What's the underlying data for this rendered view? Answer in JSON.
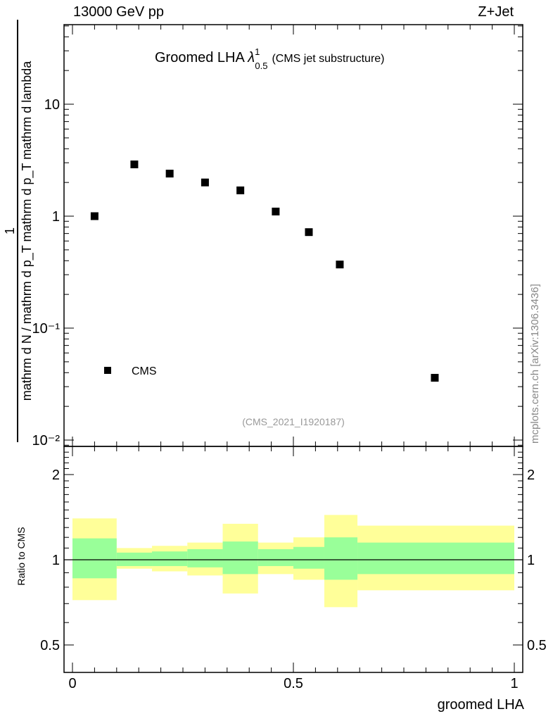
{
  "header": {
    "left": "13000 GeV pp",
    "right": "Z+Jet"
  },
  "watermark": "mcplots.cern.ch [arXiv:1306.3436]",
  "chart_data": [
    {
      "type": "scatter",
      "title_main": "Groomed LHA",
      "title_lambda_sup": "1",
      "title_lambda_sub": "0.5",
      "title_suffix": "(CMS jet substructure)",
      "analysis_tag": "(CMS_2021_I1920187)",
      "ylabel_numerator": "1",
      "ylabel_denominator": "mathrm d N / mathrm d p_T mathrm d p_T mathrm d lambda",
      "ylabel_n": "mathrm d N",
      "ylabel_d": "mathrm d p_T mathrm d p_T mathrm d lambda",
      "yscale": "log",
      "ylim": [
        0.009,
        60
      ],
      "xlim": [
        -0.02,
        1.02
      ],
      "ytick_labels": [
        "10",
        "1",
        "10⁻¹",
        "10⁻²"
      ],
      "legend": {
        "label": "CMS",
        "placement": "bottom-left"
      },
      "series": [
        {
          "name": "CMS",
          "x": [
            0.05,
            0.14,
            0.22,
            0.3,
            0.38,
            0.46,
            0.535,
            0.605,
            0.82
          ],
          "y": [
            1.0,
            2.9,
            2.4,
            2.0,
            1.7,
            1.1,
            0.72,
            0.37,
            0.036
          ]
        }
      ]
    },
    {
      "type": "area",
      "ylabel": "Ratio to CMS",
      "xlabel": "groomed LHA",
      "yscale": "log",
      "ylim": [
        0.4,
        2.4
      ],
      "xlim": [
        -0.02,
        1.02
      ],
      "yticks": [
        0.5,
        1,
        2
      ],
      "ytick_labels": [
        "0.5",
        "1",
        "2"
      ],
      "xticks": [
        0,
        0.5,
        1
      ],
      "xtick_labels": [
        "0",
        "0.5",
        "1"
      ],
      "reference_line": 1,
      "bins": [
        {
          "x0": 0.0,
          "x1": 0.1,
          "inner": [
            0.86,
            1.19
          ],
          "outer": [
            0.72,
            1.4
          ]
        },
        {
          "x0": 0.1,
          "x1": 0.18,
          "inner": [
            0.95,
            1.06
          ],
          "outer": [
            0.93,
            1.1
          ]
        },
        {
          "x0": 0.18,
          "x1": 0.26,
          "inner": [
            0.95,
            1.07
          ],
          "outer": [
            0.91,
            1.12
          ]
        },
        {
          "x0": 0.26,
          "x1": 0.34,
          "inner": [
            0.94,
            1.09
          ],
          "outer": [
            0.88,
            1.15
          ]
        },
        {
          "x0": 0.34,
          "x1": 0.42,
          "inner": [
            0.89,
            1.16
          ],
          "outer": [
            0.76,
            1.34
          ]
        },
        {
          "x0": 0.42,
          "x1": 0.5,
          "inner": [
            0.95,
            1.09
          ],
          "outer": [
            0.89,
            1.15
          ]
        },
        {
          "x0": 0.5,
          "x1": 0.57,
          "inner": [
            0.93,
            1.11
          ],
          "outer": [
            0.85,
            1.2
          ]
        },
        {
          "x0": 0.57,
          "x1": 0.645,
          "inner": [
            0.85,
            1.2
          ],
          "outer": [
            0.68,
            1.44
          ]
        },
        {
          "x0": 0.645,
          "x1": 1.0,
          "inner": [
            0.89,
            1.15
          ],
          "outer": [
            0.78,
            1.32
          ]
        }
      ],
      "colors": {
        "inner": "#99ff99",
        "outer": "#ffff99",
        "line": "#000000"
      }
    }
  ]
}
